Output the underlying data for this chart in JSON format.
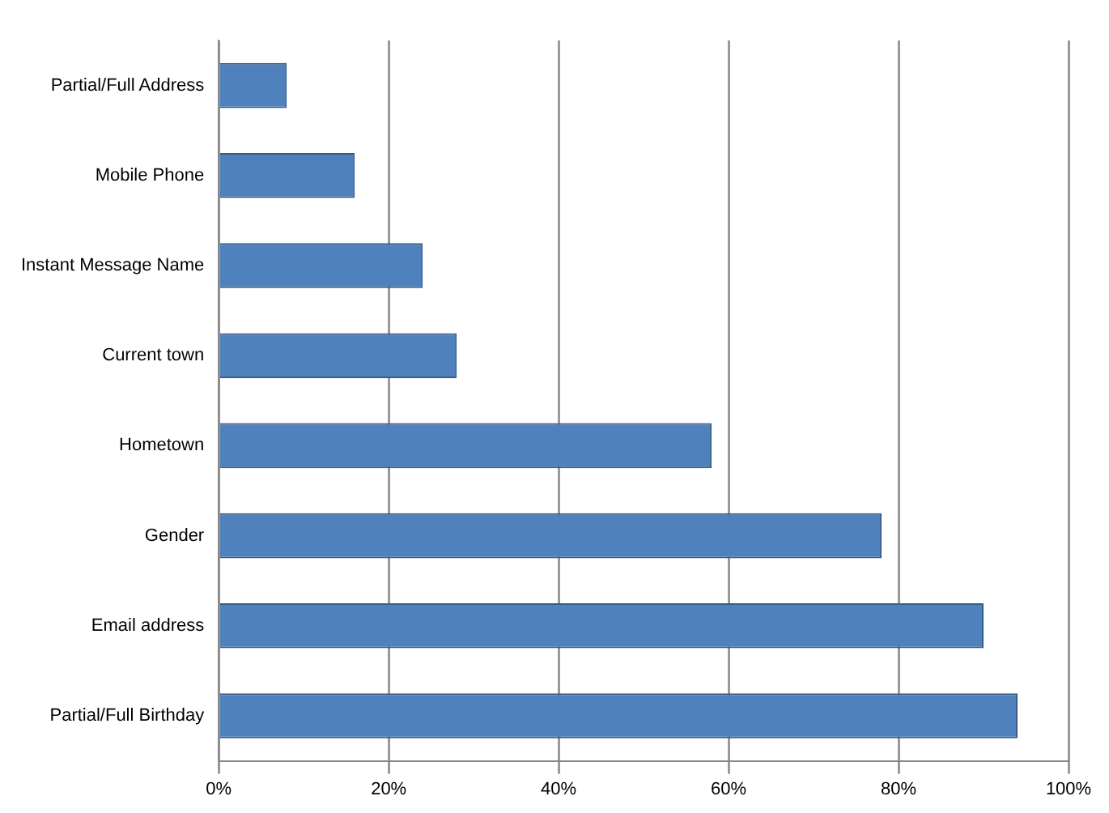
{
  "chart_data": {
    "type": "bar",
    "orientation": "horizontal",
    "categories": [
      "Partial/Full Address",
      "Mobile Phone",
      "Instant Message Name",
      "Current town",
      "Hometown",
      "Gender",
      "Email address",
      "Partial/Full Birthday"
    ],
    "values": [
      8,
      16,
      24,
      28,
      58,
      78,
      90,
      94
    ],
    "color": "#4f81bd",
    "xlim": [
      0,
      100
    ],
    "xticks": [
      {
        "value": 0,
        "label": "0%"
      },
      {
        "value": 20,
        "label": "20%"
      },
      {
        "value": 40,
        "label": "40%"
      },
      {
        "value": 60,
        "label": "60%"
      },
      {
        "value": 80,
        "label": "80%"
      },
      {
        "value": 100,
        "label": "100%"
      }
    ],
    "grid": "x",
    "legend": false
  }
}
